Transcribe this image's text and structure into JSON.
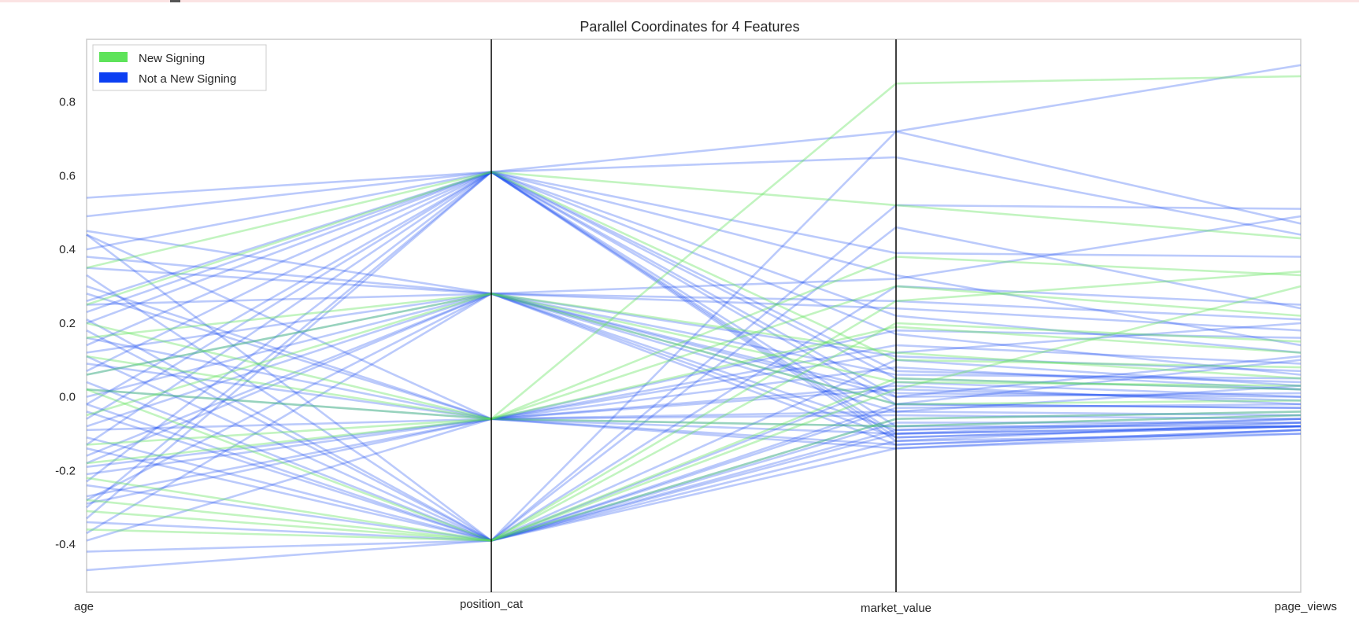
{
  "colors": {
    "new_signing": "#5ee35a",
    "not_new_signing": "#0c3ff2",
    "axis_line": "#000000",
    "frame": "#cccccc"
  },
  "chart_data": {
    "type": "parallel_coordinates",
    "title": "Parallel Coordinates for 4 Features",
    "axes": [
      "age",
      "position_cat",
      "market_value",
      "page_views"
    ],
    "ylim": [
      -0.53,
      0.97
    ],
    "yticks": [
      -0.4,
      -0.2,
      0.0,
      0.2,
      0.4,
      0.6,
      0.8
    ],
    "ytick_labels": [
      "-0.4",
      "-0.2",
      "0.0",
      "0.2",
      "0.4",
      "0.6",
      "0.8"
    ],
    "grid": false,
    "legend": {
      "location": "top-left",
      "entries": [
        "New Signing",
        "Not a New Signing"
      ]
    },
    "series": [
      {
        "name": "New Signing",
        "color": "#5ee35a",
        "lines": [
          [
            0.35,
            0.61,
            0.52,
            0.43
          ],
          [
            0.02,
            -0.06,
            0.85,
            0.87
          ],
          [
            -0.28,
            -0.39,
            0.26,
            0.34
          ],
          [
            -0.18,
            -0.06,
            0.19,
            0.12
          ],
          [
            0.06,
            0.28,
            -0.02,
            -0.01
          ],
          [
            -0.31,
            -0.39,
            0.05,
            0.02
          ],
          [
            0.11,
            -0.06,
            0.38,
            0.33
          ],
          [
            -0.05,
            0.28,
            0.12,
            0.05
          ],
          [
            -0.22,
            -0.39,
            -0.06,
            -0.04
          ],
          [
            0.25,
            0.61,
            0.1,
            0.08
          ],
          [
            -0.13,
            -0.06,
            0.3,
            0.22
          ],
          [
            0.16,
            0.28,
            0.04,
            0.03
          ],
          [
            -0.36,
            -0.39,
            0.2,
            0.15
          ],
          [
            0.2,
            -0.06,
            -0.08,
            -0.05
          ],
          [
            0.02,
            -0.39,
            0.02,
            0.3
          ]
        ]
      },
      {
        "name": "Not a New Signing",
        "color": "#0c3ff2",
        "lines": [
          [
            0.54,
            0.61,
            0.72,
            0.47
          ],
          [
            0.49,
            0.61,
            0.65,
            0.44
          ],
          [
            0.45,
            0.28,
            -0.02,
            0.1
          ],
          [
            0.44,
            -0.39,
            0.52,
            0.51
          ],
          [
            0.4,
            0.61,
            0.39,
            0.38
          ],
          [
            0.35,
            0.28,
            0.32,
            0.49
          ],
          [
            0.3,
            -0.06,
            0.12,
            0.2
          ],
          [
            0.26,
            0.61,
            -0.08,
            -0.05
          ],
          [
            0.25,
            0.28,
            0.26,
            0.21
          ],
          [
            0.21,
            -0.39,
            -0.1,
            -0.08
          ],
          [
            0.2,
            0.61,
            -0.12,
            -0.07
          ],
          [
            0.16,
            -0.06,
            0.08,
            0.02
          ],
          [
            0.12,
            0.28,
            -0.04,
            0.03
          ],
          [
            0.11,
            -0.39,
            0.46,
            0.24
          ],
          [
            0.07,
            0.61,
            0.33,
            0.14
          ],
          [
            0.06,
            0.28,
            0.06,
            0.05
          ],
          [
            0.02,
            -0.06,
            -0.1,
            -0.08
          ],
          [
            -0.02,
            0.61,
            0.22,
            0.12
          ],
          [
            -0.04,
            -0.39,
            -0.06,
            -0.04
          ],
          [
            -0.08,
            0.28,
            -0.13,
            -0.09
          ],
          [
            -0.09,
            -0.06,
            0.14,
            0.09
          ],
          [
            -0.13,
            0.61,
            -0.02,
            -0.03
          ],
          [
            -0.14,
            -0.39,
            0.04,
            0.0
          ],
          [
            -0.18,
            0.28,
            0.24,
            0.18
          ],
          [
            -0.19,
            -0.06,
            -0.05,
            -0.06
          ],
          [
            -0.23,
            0.61,
            0.17,
            0.06
          ],
          [
            -0.24,
            -0.39,
            0.1,
            0.03
          ],
          [
            -0.28,
            0.28,
            -0.09,
            -0.06
          ],
          [
            -0.29,
            -0.06,
            0.02,
            -0.01
          ],
          [
            -0.33,
            0.61,
            -0.11,
            -0.08
          ],
          [
            -0.34,
            -0.39,
            -0.14,
            -0.09
          ],
          [
            -0.37,
            0.28,
            0.0,
            0.01
          ],
          [
            -0.42,
            -0.39,
            -0.07,
            -0.07
          ],
          [
            -0.47,
            -0.39,
            -0.12,
            -0.1
          ],
          [
            0.44,
            -0.06,
            0.18,
            0.16
          ],
          [
            0.33,
            -0.39,
            -0.03,
            -0.02
          ],
          [
            0.14,
            0.61,
            0.07,
            0.04
          ],
          [
            -0.11,
            -0.39,
            0.3,
            0.25
          ],
          [
            -0.27,
            -0.06,
            -0.13,
            -0.09
          ],
          [
            0.09,
            -0.06,
            0.03,
            -0.02
          ],
          [
            0.18,
            -0.39,
            -0.09,
            -0.07
          ],
          [
            -0.16,
            0.28,
            0.01,
            0.0
          ],
          [
            0.28,
            -0.06,
            -0.14,
            -0.1
          ],
          [
            -0.06,
            0.61,
            -0.1,
            -0.06
          ],
          [
            0.38,
            0.28,
            0.11,
            0.07
          ],
          [
            -0.3,
            0.61,
            0.05,
            0.02
          ],
          [
            0.04,
            -0.39,
            -0.02,
            -0.03
          ],
          [
            -0.21,
            -0.06,
            -0.08,
            -0.08
          ],
          [
            0.23,
            0.61,
            0.0,
            0.11
          ],
          [
            -0.39,
            -0.06,
            -0.04,
            -0.05
          ],
          [
            0.0,
            0.28,
            -0.11,
            -0.08
          ],
          [
            -0.02,
            -0.39,
            0.72,
            0.9
          ]
        ]
      }
    ]
  }
}
